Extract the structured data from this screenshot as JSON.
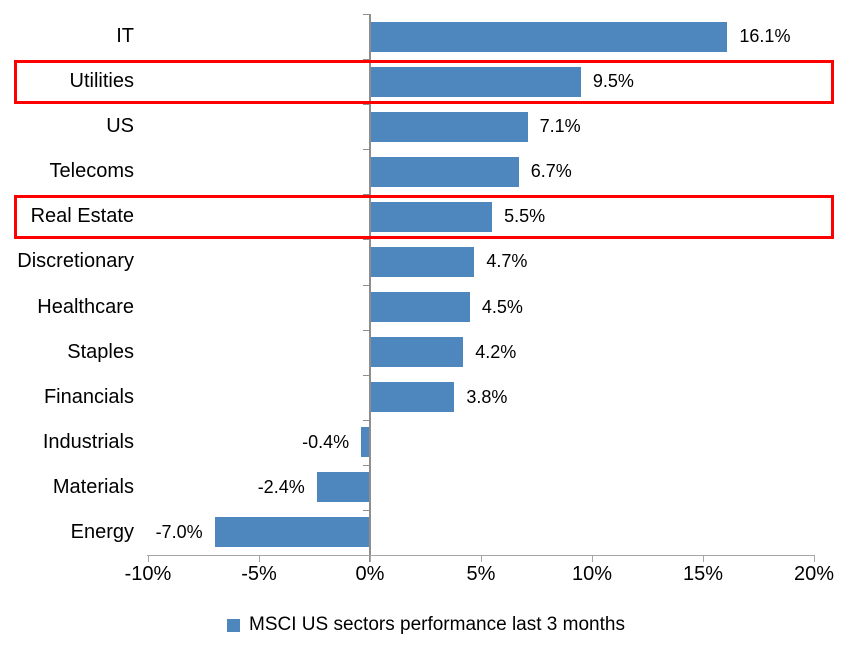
{
  "chart_data": {
    "type": "bar",
    "orientation": "horizontal",
    "categories": [
      "IT",
      "Utilities",
      "US",
      "Telecoms",
      "Real Estate",
      "Discretionary",
      "Healthcare",
      "Staples",
      "Financials",
      "Industrials",
      "Materials",
      "Energy"
    ],
    "values": [
      16.1,
      9.5,
      7.1,
      6.7,
      5.5,
      4.7,
      4.5,
      4.2,
      3.8,
      -0.4,
      -2.4,
      -7.0
    ],
    "value_labels": [
      "16.1%",
      "9.5%",
      "7.1%",
      "6.7%",
      "5.5%",
      "4.7%",
      "4.5%",
      "4.2%",
      "3.8%",
      "-0.4%",
      "-2.4%",
      "-7.0%"
    ],
    "highlighted_categories": [
      "Utilities",
      "Real Estate"
    ],
    "x_ticks": [
      -10,
      -5,
      0,
      5,
      10,
      15,
      20
    ],
    "x_tick_labels": [
      "-10%",
      "-5%",
      "0%",
      "5%",
      "10%",
      "15%",
      "20%"
    ],
    "xlim": [
      -10,
      20
    ],
    "grid": false,
    "legend_label": "MSCI US sectors performance last 3 months",
    "legend_position": "bottom",
    "colors": {
      "bar": "#4E86BE",
      "highlight_box": "#FF0000",
      "axis": "#A6A6A6",
      "zero_line": "#8E8E8E",
      "text": "#000000",
      "background": "#FFFFFF"
    }
  }
}
